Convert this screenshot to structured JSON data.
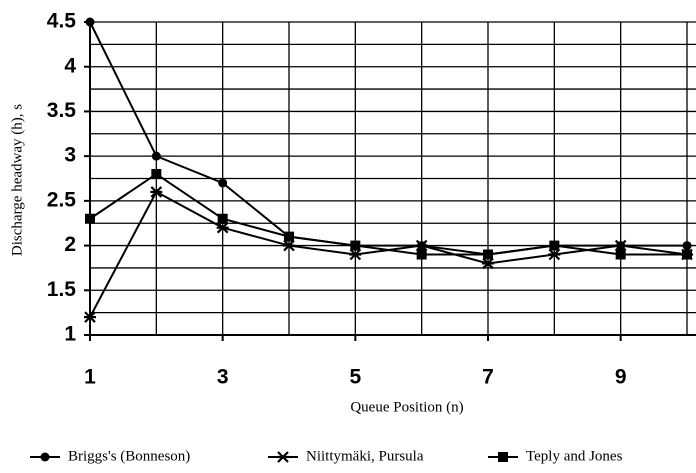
{
  "chart_data": {
    "type": "line",
    "x_label": "Queue Position (n)",
    "y_label": "Discharge headway (h), s",
    "x": [
      1,
      2,
      3,
      4,
      5,
      6,
      7,
      8,
      9,
      10
    ],
    "series": [
      {
        "name": "Briggs's (Bonneson)",
        "color": "#000000",
        "marker": "circle",
        "values": [
          4.5,
          3.0,
          2.7,
          2.1,
          2.0,
          2.0,
          1.9,
          2.0,
          2.0,
          2.0
        ]
      },
      {
        "name": "Niittymäki, Pursula",
        "color": "#000000",
        "marker": "star",
        "values": [
          1.2,
          2.6,
          2.2,
          2.0,
          1.9,
          2.0,
          1.8,
          1.9,
          2.0,
          1.9
        ]
      },
      {
        "name": "Teply and Jones",
        "color": "#000000",
        "marker": "square",
        "values": [
          2.3,
          2.8,
          2.3,
          2.1,
          2.0,
          1.9,
          1.9,
          2.0,
          1.9,
          1.9
        ]
      }
    ],
    "xlim": [
      1,
      10
    ],
    "xticks": [
      1,
      3,
      5,
      7,
      9
    ],
    "ylim": [
      1,
      4.5
    ],
    "yticks": [
      1,
      1.5,
      2,
      2.5,
      3,
      3.5,
      4,
      4.5
    ],
    "xgrid": [
      1,
      2,
      3,
      4,
      5,
      6,
      7,
      8,
      9,
      10
    ],
    "ygrid": [
      1,
      1.25,
      1.5,
      1.75,
      2,
      2.25,
      2.5,
      2.75,
      3,
      3.25,
      3.5,
      3.75,
      4,
      4.25,
      4.5
    ],
    "legend": "bottom"
  }
}
